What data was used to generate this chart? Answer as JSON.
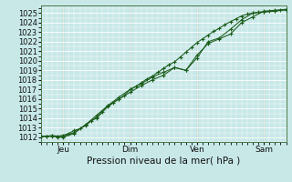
{
  "xlabel": "Pression niveau de la mer( hPa )",
  "background_color": "#c8e8e8",
  "grid_color": "#ffffff",
  "line_color": "#1a5c1a",
  "ylim": [
    1011.5,
    1025.8
  ],
  "yticks": [
    1012,
    1013,
    1014,
    1015,
    1016,
    1017,
    1018,
    1019,
    1020,
    1021,
    1022,
    1023,
    1024,
    1025
  ],
  "xtick_labels": [
    "Jeu",
    "Dim",
    "Ven",
    "Sam"
  ],
  "xtick_positions": [
    24,
    96,
    168,
    240
  ],
  "xlim": [
    0,
    264
  ],
  "vline_positions": [
    24,
    96,
    168,
    240
  ],
  "series1_x": [
    0,
    6,
    12,
    18,
    24,
    30,
    36,
    42,
    48,
    54,
    60,
    66,
    72,
    78,
    84,
    90,
    96,
    102,
    108,
    114,
    120,
    126,
    132,
    138,
    144,
    150,
    156,
    162,
    168,
    174,
    180,
    186,
    192,
    198,
    204,
    210,
    216,
    222,
    228,
    234,
    240,
    246,
    252,
    258,
    264
  ],
  "series1_y": [
    1012.1,
    1012.1,
    1012.15,
    1012.1,
    1012.2,
    1012.4,
    1012.7,
    1012.9,
    1013.2,
    1013.7,
    1014.0,
    1014.6,
    1015.2,
    1015.6,
    1016.0,
    1016.4,
    1017.0,
    1017.3,
    1017.7,
    1018.1,
    1018.4,
    1018.8,
    1019.2,
    1019.6,
    1019.9,
    1020.4,
    1020.9,
    1021.4,
    1021.9,
    1022.3,
    1022.7,
    1023.1,
    1023.4,
    1023.8,
    1024.1,
    1024.4,
    1024.7,
    1024.9,
    1025.0,
    1025.1,
    1025.15,
    1025.2,
    1025.25,
    1025.3,
    1025.35
  ],
  "series2_x": [
    0,
    6,
    12,
    18,
    24,
    36,
    48,
    60,
    72,
    84,
    96,
    108,
    120,
    132,
    144,
    156,
    168,
    180,
    192,
    204,
    216,
    228,
    240,
    252,
    264
  ],
  "series2_y": [
    1012.1,
    1012.05,
    1012.1,
    1012.0,
    1012.0,
    1012.4,
    1013.3,
    1014.3,
    1015.3,
    1016.0,
    1016.7,
    1017.4,
    1018.0,
    1018.5,
    1019.3,
    1019.0,
    1020.3,
    1022.0,
    1022.4,
    1023.3,
    1024.3,
    1025.0,
    1025.1,
    1025.2,
    1025.35
  ],
  "series3_x": [
    0,
    12,
    24,
    36,
    48,
    60,
    72,
    84,
    96,
    108,
    120,
    132,
    144,
    156,
    168,
    180,
    192,
    204,
    216,
    228,
    240,
    252,
    264
  ],
  "series3_y": [
    1012.1,
    1012.15,
    1012.1,
    1012.5,
    1013.3,
    1014.1,
    1015.3,
    1016.2,
    1017.0,
    1017.6,
    1018.3,
    1018.8,
    1019.3,
    1019.0,
    1020.6,
    1021.8,
    1022.3,
    1022.8,
    1024.0,
    1024.6,
    1025.2,
    1025.3,
    1025.4
  ]
}
